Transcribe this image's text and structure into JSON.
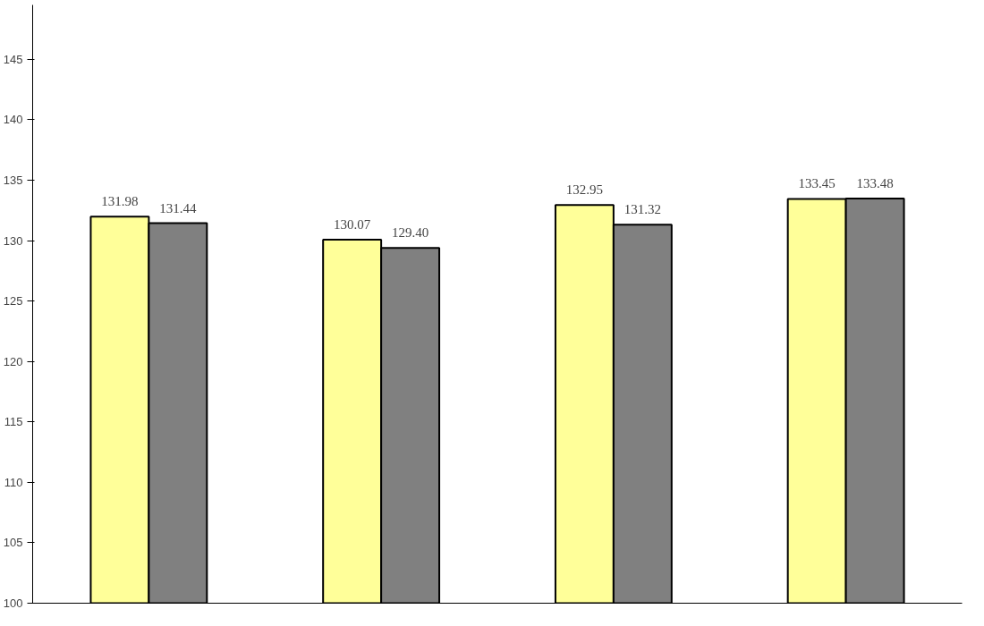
{
  "chart_data": {
    "type": "bar",
    "categories": [
      null,
      null,
      null,
      null
    ],
    "series": [
      {
        "color": "#ffff99",
        "values": [
          131.98,
          130.07,
          132.95,
          133.45
        ],
        "value_labels": [
          "131.98",
          "130.07",
          "132.95",
          "133.45"
        ]
      },
      {
        "color": "#808080",
        "values": [
          131.44,
          129.4,
          131.32,
          133.48
        ],
        "value_labels": [
          "131.44",
          "129.40",
          "131.32",
          "133.48"
        ]
      }
    ],
    "ylim": [
      100,
      149.5
    ],
    "yticks": [
      100,
      105,
      110,
      115,
      120,
      125,
      130,
      135,
      140,
      145
    ],
    "grid": false
  }
}
